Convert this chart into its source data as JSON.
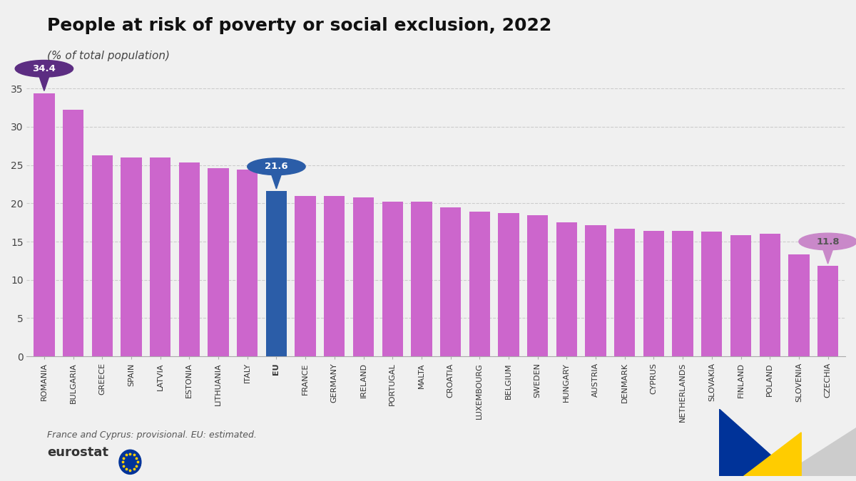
{
  "title": "People at risk of poverty or social exclusion, 2022",
  "subtitle": "(% of total population)",
  "footnote": "France and Cyprus: provisional. EU: estimated.",
  "categories": [
    "ROMANIA",
    "BULGARIA",
    "GREECE",
    "SPAIN",
    "LATVIA",
    "ESTONIA",
    "LITHUANIA",
    "ITALY",
    "EU",
    "FRANCE",
    "GERMANY",
    "IRELAND",
    "PORTUGAL",
    "MALTA",
    "CROATIA",
    "LUXEMBOURG",
    "BELGIUM",
    "SWEDEN",
    "HUNGARY",
    "AUSTRIA",
    "DENMARK",
    "CYPRUS",
    "NETHERLANDS",
    "SLOVAKIA",
    "FINLAND",
    "POLAND",
    "SLOVENIA",
    "CZECHIA"
  ],
  "values": [
    34.4,
    32.2,
    26.3,
    26.0,
    26.0,
    25.3,
    24.6,
    24.4,
    21.6,
    21.0,
    21.0,
    20.8,
    20.2,
    20.2,
    19.5,
    18.9,
    18.7,
    18.4,
    17.5,
    17.1,
    16.7,
    16.4,
    16.4,
    16.3,
    15.8,
    16.0,
    13.3,
    11.8
  ],
  "bar_color_default": "#cc66cc",
  "bar_color_eu": "#2b5da8",
  "background_color": "#f0f0f0",
  "ylim_min": 0,
  "ylim_max": 37,
  "yticks": [
    0,
    5,
    10,
    15,
    20,
    25,
    30,
    35
  ],
  "title_fontsize": 18,
  "subtitle_fontsize": 11,
  "footnote_fontsize": 9,
  "label_romania": "34.4",
  "label_eu": "21.6",
  "label_czechia": "11.8",
  "bubble_color_romania": "#5c2d82",
  "bubble_color_eu": "#2b5da8",
  "bubble_color_czechia": "#c988c9"
}
